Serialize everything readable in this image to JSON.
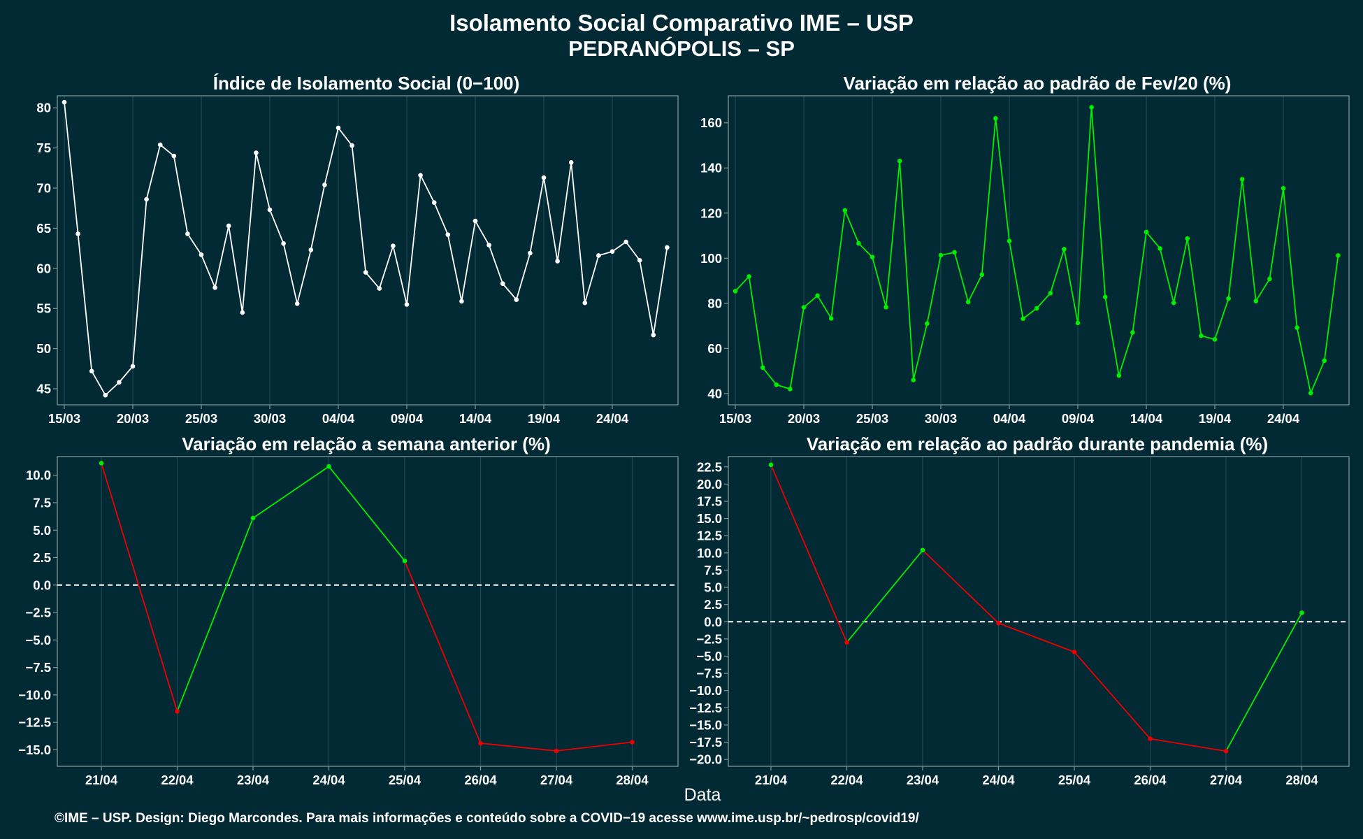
{
  "title": "Isolamento Social Comparativo IME – USP",
  "subtitle": "PEDRANÓPOLIS – SP",
  "xlabel": "Data",
  "footer": "©IME – USP. Design: Diego Marcondes. Para mais informações e conteúdo sobre a COVID−19 acesse www.ime.usp.br/~pedrosp/covid19/",
  "colors": {
    "background": "#022a35",
    "panel_border": "#7f959a",
    "grid": "#1d4852",
    "white_series": "#ffffff",
    "green_series": "#00ee00",
    "red_series": "#ee0000",
    "text": "#ffffff"
  },
  "chart_data": [
    {
      "id": "isolation_index",
      "type": "line",
      "title": "Índice de Isolamento Social (0−100)",
      "x": [
        "15/03",
        "16/03",
        "17/03",
        "18/03",
        "19/03",
        "20/03",
        "21/03",
        "22/03",
        "23/03",
        "24/03",
        "25/03",
        "26/03",
        "27/03",
        "28/03",
        "29/03",
        "30/03",
        "31/03",
        "01/04",
        "02/04",
        "03/04",
        "04/04",
        "05/04",
        "06/04",
        "07/04",
        "08/04",
        "09/04",
        "10/04",
        "11/04",
        "12/04",
        "13/04",
        "14/04",
        "15/04",
        "16/04",
        "17/04",
        "18/04",
        "19/04",
        "20/04",
        "21/04",
        "22/04",
        "23/04",
        "24/04",
        "25/04",
        "26/04",
        "27/04",
        "28/04"
      ],
      "xticks": [
        "15/03",
        "20/03",
        "25/03",
        "30/03",
        "04/04",
        "09/04",
        "14/04",
        "19/04",
        "24/04"
      ],
      "yticks": [
        "45",
        "50",
        "55",
        "60",
        "65",
        "70",
        "75",
        "80"
      ],
      "ylim": [
        43,
        81.5
      ],
      "series": [
        {
          "color": "#ffffff",
          "values": [
            80.7,
            64.3,
            47.2,
            44.2,
            45.8,
            47.8,
            68.6,
            75.4,
            74.0,
            64.3,
            61.7,
            57.6,
            65.3,
            54.5,
            74.4,
            67.3,
            63.1,
            55.6,
            62.3,
            70.4,
            77.5,
            75.3,
            59.5,
            57.5,
            62.8,
            55.5,
            71.6,
            68.2,
            64.2,
            55.9,
            65.9,
            62.9,
            58.1,
            56.1,
            61.9,
            71.3,
            60.9,
            73.2,
            55.7,
            61.6,
            62.1,
            63.3,
            61.0,
            51.7,
            62.6
          ]
        }
      ],
      "grid": true
    },
    {
      "id": "variation_feb20",
      "type": "line",
      "title": "Variação em relação ao padrão de Fev/20 (%)",
      "x": [
        "15/03",
        "16/03",
        "17/03",
        "18/03",
        "19/03",
        "20/03",
        "21/03",
        "22/03",
        "23/03",
        "24/03",
        "25/03",
        "26/03",
        "27/03",
        "28/03",
        "29/03",
        "30/03",
        "31/03",
        "01/04",
        "02/04",
        "03/04",
        "04/04",
        "05/04",
        "06/04",
        "07/04",
        "08/04",
        "09/04",
        "10/04",
        "11/04",
        "12/04",
        "13/04",
        "14/04",
        "15/04",
        "16/04",
        "17/04",
        "18/04",
        "19/04",
        "20/04",
        "21/04",
        "22/04",
        "23/04",
        "24/04",
        "25/04",
        "26/04",
        "27/04",
        "28/04"
      ],
      "xticks": [
        "15/03",
        "20/03",
        "25/03",
        "30/03",
        "04/04",
        "09/04",
        "14/04",
        "19/04",
        "24/04"
      ],
      "yticks": [
        "40",
        "60",
        "80",
        "100",
        "120",
        "140",
        "160"
      ],
      "ylim": [
        35,
        172
      ],
      "series": [
        {
          "color": "#00ee00",
          "values": [
            85.4,
            91.9,
            51.5,
            43.9,
            42.0,
            78.2,
            83.4,
            73.3,
            121.2,
            106.6,
            100.5,
            78.3,
            143.1,
            46.0,
            71.0,
            101.3,
            102.6,
            80.6,
            92.7,
            162.0,
            107.6,
            73.2,
            77.8,
            84.5,
            104.0,
            71.3,
            166.9,
            82.8,
            48.0,
            67.1,
            111.6,
            104.3,
            80.2,
            108.7,
            65.6,
            64.0,
            82.1,
            135.0,
            81.0,
            90.8,
            131.0,
            69.2,
            40.2,
            54.6,
            101.2
          ]
        }
      ],
      "grid": true
    },
    {
      "id": "variation_previous_week",
      "type": "line",
      "title": "Variação em relação a semana anterior (%)",
      "x": [
        "21/04",
        "22/04",
        "23/04",
        "24/04",
        "25/04",
        "26/04",
        "27/04",
        "28/04"
      ],
      "xticks": [
        "21/04",
        "22/04",
        "23/04",
        "24/04",
        "25/04",
        "26/04",
        "27/04",
        "28/04"
      ],
      "yticks": [
        "10.0",
        "7.5",
        "5.0",
        "2.5",
        "0.0",
        "−2.5",
        "−5.0",
        "−7.5",
        "−10.0",
        "−12.5",
        "−15.0"
      ],
      "ylim": [
        -16.5,
        11.7
      ],
      "values": [
        11.1,
        -11.5,
        6.1,
        10.8,
        2.2,
        -14.4,
        -15.1,
        -14.3
      ],
      "point_colors": [
        "#00ee00",
        "#ee0000",
        "#00ee00",
        "#00ee00",
        "#00ee00",
        "#ee0000",
        "#ee0000",
        "#ee0000"
      ],
      "reference_line": 0,
      "grid": true
    },
    {
      "id": "variation_pandemic_pattern",
      "type": "line",
      "title": "Variação em relação ao padrão durante pandemia (%)",
      "x": [
        "21/04",
        "22/04",
        "23/04",
        "24/04",
        "25/04",
        "26/04",
        "27/04",
        "28/04"
      ],
      "xticks": [
        "21/04",
        "22/04",
        "23/04",
        "24/04",
        "25/04",
        "26/04",
        "27/04",
        "28/04"
      ],
      "yticks": [
        "22.5",
        "20.0",
        "17.5",
        "15.0",
        "12.5",
        "10.0",
        "7.5",
        "5.0",
        "2.5",
        "0.0",
        "−2.5",
        "−5.0",
        "−7.5",
        "−10.0",
        "−12.5",
        "−15.0",
        "−17.5",
        "−20.0"
      ],
      "ylim": [
        -21,
        24
      ],
      "values": [
        22.8,
        -3.0,
        10.4,
        -0.2,
        -4.4,
        -17.0,
        -18.8,
        1.3
      ],
      "point_colors": [
        "#00ee00",
        "#ee0000",
        "#00ee00",
        "#ee0000",
        "#ee0000",
        "#ee0000",
        "#ee0000",
        "#00ee00"
      ],
      "reference_line": 0,
      "grid": true
    }
  ]
}
